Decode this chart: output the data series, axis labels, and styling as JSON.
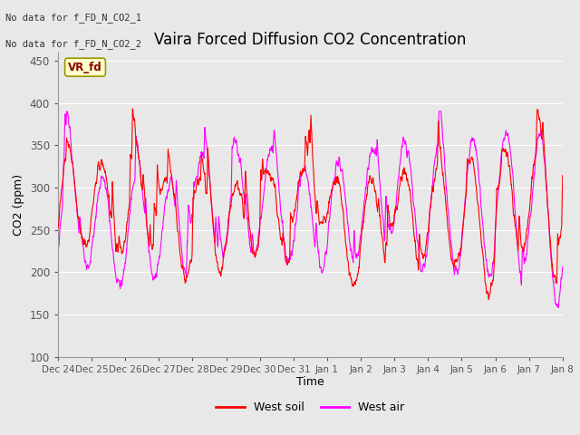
{
  "title": "Vaira Forced Diffusion CO2 Concentration",
  "xlabel": "Time",
  "ylabel": "CO2 (ppm)",
  "ylim": [
    100,
    460
  ],
  "yticks": [
    100,
    150,
    200,
    250,
    300,
    350,
    400,
    450
  ],
  "color_soil": "#ff0000",
  "color_air": "#ff00ff",
  "linewidth_soil": 0.8,
  "linewidth_air": 0.8,
  "legend_soil": "West soil",
  "legend_air": "West air",
  "no_data_text1": "No data for f_FD_N_CO2_1",
  "no_data_text2": "No data for f_FD_N_CO2_2",
  "vr_fd_label": "VR_fd",
  "bg_color": "#e8e8e8",
  "plot_bg_color": "#e8e8e8",
  "xtick_labels": [
    "Dec 24",
    "Dec 25",
    "Dec 26",
    "Dec 27",
    "Dec 28",
    "Dec 29",
    "Dec 30",
    "Dec 31",
    "Jan 1",
    "Jan 2",
    "Jan 3",
    "Jan 4",
    "Jan 5",
    "Jan 6",
    "Jan 7",
    "Jan 8"
  ],
  "seed": 12345,
  "n_points": 2160
}
